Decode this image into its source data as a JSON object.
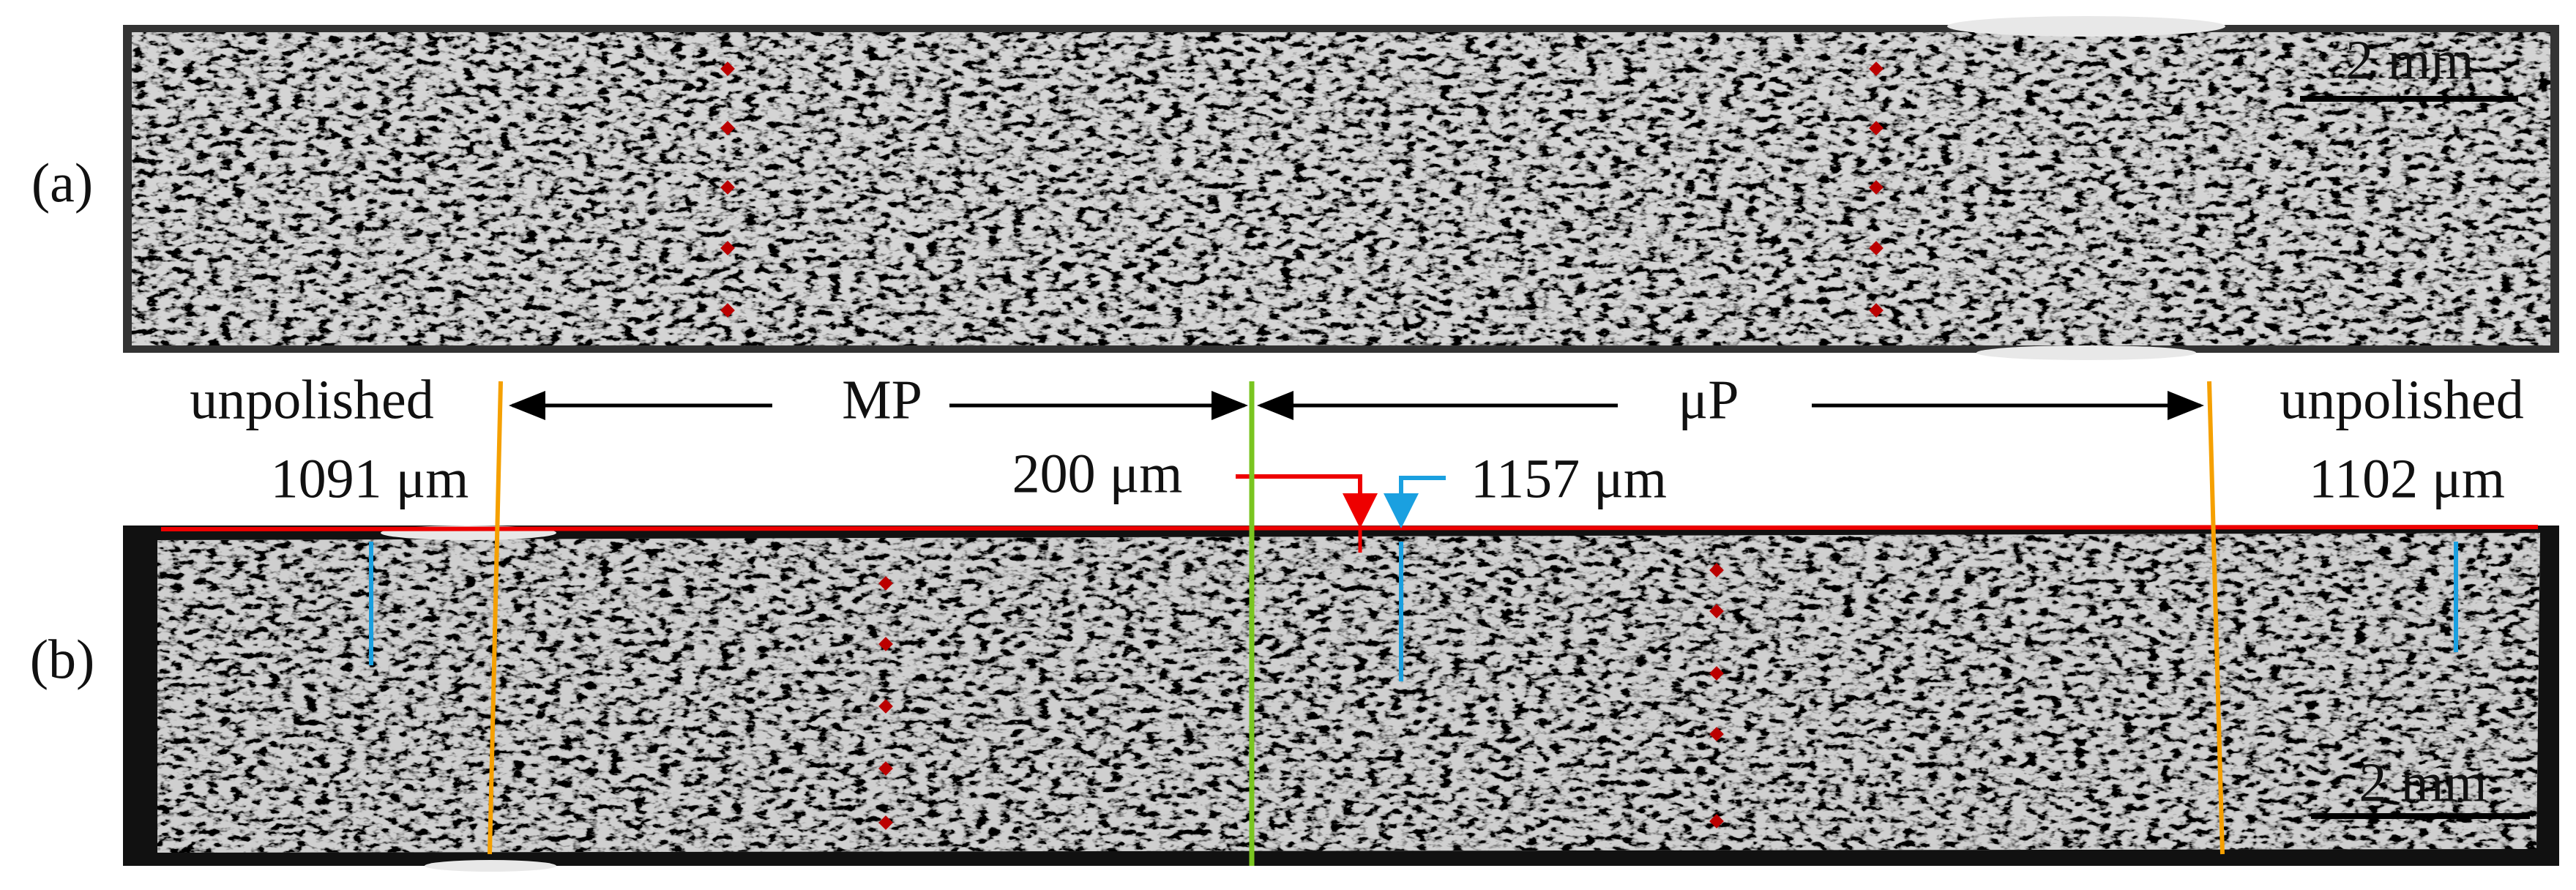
{
  "panels": [
    {
      "label": "(a)",
      "scale_bar": "2 mm"
    },
    {
      "label": "(b)",
      "scale_bar": "2 mm"
    }
  ],
  "regions": {
    "left": "unpolished",
    "middle_left": "MP",
    "middle_right": "μP",
    "right": "unpolished"
  },
  "measurements": {
    "left": "1091 μm",
    "offset": "200 μm",
    "center": "1157 μm",
    "right": "1102 μm"
  }
}
